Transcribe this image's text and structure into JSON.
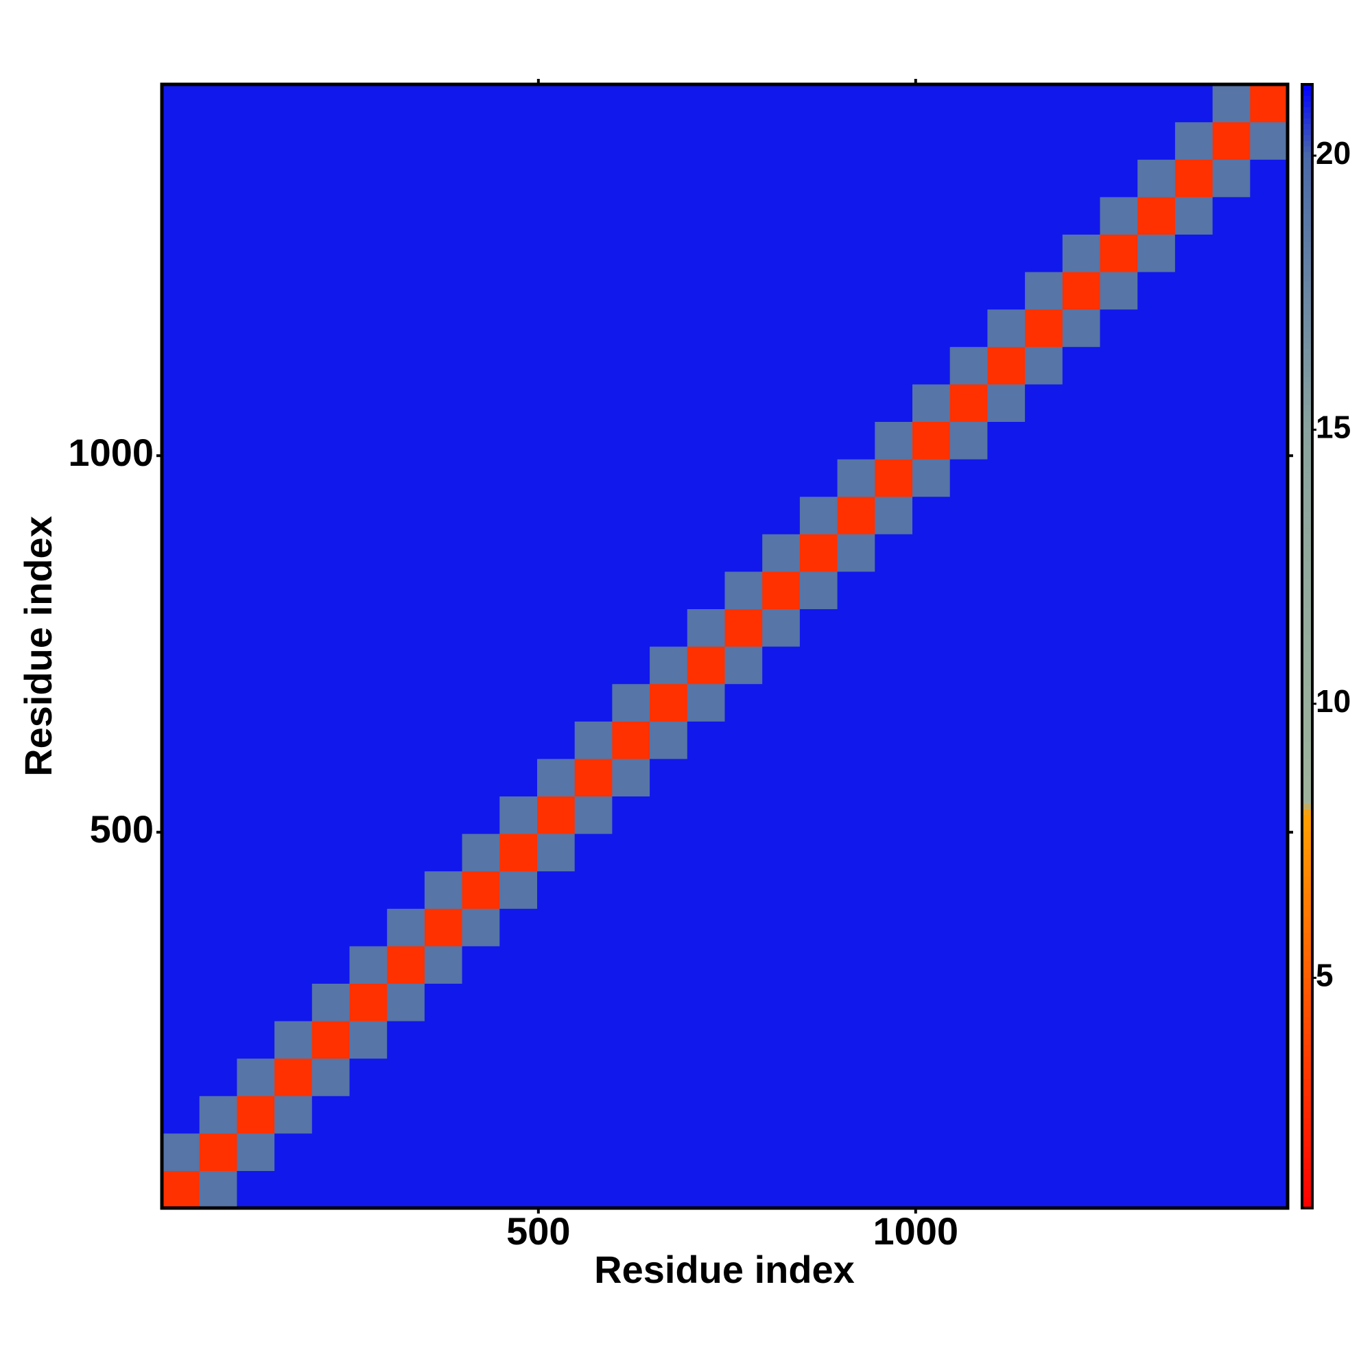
{
  "chart_data": {
    "type": "heatmap",
    "xlabel": "Residue index",
    "ylabel": "Residue index",
    "xlim": [
      1,
      1493
    ],
    "ylim": [
      1,
      1493
    ],
    "xticks": [
      500,
      1000
    ],
    "yticks": [
      500,
      1000
    ],
    "clim": [
      0.8,
      21.3
    ],
    "cticks": [
      5,
      10,
      15,
      20
    ],
    "colorscale": [
      [
        0.8,
        "#ff0000"
      ],
      [
        8,
        "#ffa000"
      ],
      [
        8.2,
        "#9fb39c"
      ],
      [
        15,
        "#8aa39e"
      ],
      [
        20,
        "#4a6aa8"
      ],
      [
        21.3,
        "#0000ff"
      ]
    ],
    "z": [
      [
        3,
        19,
        21,
        21,
        21,
        21,
        21,
        21,
        21,
        21,
        21,
        21,
        21,
        21,
        21,
        21,
        21,
        21,
        21,
        21,
        21,
        21,
        21,
        21,
        21,
        21,
        21,
        21,
        21,
        21
      ],
      [
        19,
        3,
        19,
        21,
        21,
        21,
        21,
        21,
        21,
        21,
        21,
        21,
        21,
        21,
        21,
        21,
        21,
        21,
        21,
        21,
        21,
        21,
        21,
        21,
        21,
        21,
        21,
        21,
        21,
        21
      ],
      [
        21,
        19,
        3,
        19,
        21,
        21,
        21,
        21,
        21,
        21,
        21,
        21,
        21,
        21,
        21,
        21,
        21,
        21,
        21,
        21,
        21,
        21,
        21,
        21,
        21,
        21,
        21,
        21,
        21,
        21
      ],
      [
        21,
        21,
        19,
        3,
        19,
        21,
        21,
        21,
        21,
        21,
        21,
        21,
        21,
        21,
        21,
        21,
        21,
        21,
        21,
        21,
        21,
        21,
        21,
        21,
        21,
        21,
        21,
        21,
        21,
        21
      ],
      [
        21,
        21,
        21,
        19,
        3,
        19,
        21,
        21,
        21,
        21,
        21,
        21,
        21,
        21,
        21,
        21,
        21,
        21,
        21,
        21,
        21,
        21,
        21,
        21,
        21,
        21,
        21,
        21,
        21,
        21
      ],
      [
        21,
        21,
        21,
        21,
        19,
        3,
        19,
        21,
        21,
        21,
        21,
        21,
        21,
        21,
        21,
        21,
        21,
        21,
        21,
        21,
        21,
        21,
        21,
        21,
        21,
        21,
        21,
        21,
        21,
        21
      ],
      [
        21,
        21,
        21,
        21,
        21,
        19,
        3,
        19,
        21,
        21,
        21,
        21,
        21,
        21,
        21,
        21,
        21,
        21,
        21,
        21,
        21,
        21,
        21,
        21,
        21,
        21,
        21,
        21,
        21,
        21
      ],
      [
        21,
        21,
        21,
        21,
        21,
        21,
        19,
        3,
        19,
        21,
        21,
        21,
        21,
        21,
        21,
        21,
        21,
        21,
        21,
        21,
        21,
        21,
        21,
        21,
        21,
        21,
        21,
        21,
        21,
        21
      ],
      [
        21,
        21,
        21,
        21,
        21,
        21,
        21,
        19,
        3,
        19,
        21,
        21,
        21,
        21,
        21,
        21,
        21,
        21,
        21,
        21,
        21,
        21,
        21,
        21,
        21,
        21,
        21,
        21,
        21,
        21
      ],
      [
        21,
        21,
        21,
        21,
        21,
        21,
        21,
        21,
        19,
        3,
        19,
        21,
        21,
        21,
        21,
        21,
        21,
        21,
        21,
        21,
        21,
        21,
        21,
        21,
        21,
        21,
        21,
        21,
        21,
        21
      ],
      [
        21,
        21,
        21,
        21,
        21,
        21,
        21,
        21,
        21,
        19,
        3,
        19,
        21,
        21,
        21,
        21,
        21,
        21,
        21,
        21,
        21,
        21,
        21,
        21,
        21,
        21,
        21,
        21,
        21,
        21
      ],
      [
        21,
        21,
        21,
        21,
        21,
        21,
        21,
        21,
        21,
        21,
        19,
        3,
        19,
        21,
        21,
        21,
        21,
        21,
        21,
        21,
        21,
        21,
        21,
        21,
        21,
        21,
        21,
        21,
        21,
        21
      ],
      [
        21,
        21,
        21,
        21,
        21,
        21,
        21,
        21,
        21,
        21,
        21,
        19,
        3,
        19,
        21,
        21,
        21,
        21,
        21,
        21,
        21,
        21,
        21,
        21,
        21,
        21,
        21,
        21,
        21,
        21
      ],
      [
        21,
        21,
        21,
        21,
        21,
        21,
        21,
        21,
        21,
        21,
        21,
        21,
        19,
        3,
        19,
        21,
        21,
        21,
        21,
        21,
        21,
        21,
        21,
        21,
        21,
        21,
        21,
        21,
        21,
        21
      ],
      [
        21,
        21,
        21,
        21,
        21,
        21,
        21,
        21,
        21,
        21,
        21,
        21,
        21,
        19,
        3,
        19,
        21,
        21,
        21,
        21,
        21,
        21,
        21,
        21,
        21,
        21,
        21,
        21,
        21,
        21
      ],
      [
        21,
        21,
        21,
        21,
        21,
        21,
        21,
        21,
        21,
        21,
        21,
        21,
        21,
        21,
        19,
        3,
        19,
        21,
        21,
        21,
        21,
        21,
        21,
        21,
        21,
        21,
        21,
        21,
        21,
        21
      ],
      [
        21,
        21,
        21,
        21,
        21,
        21,
        21,
        21,
        21,
        21,
        21,
        21,
        21,
        21,
        21,
        19,
        3,
        19,
        21,
        21,
        21,
        21,
        21,
        21,
        21,
        21,
        21,
        21,
        21,
        21
      ],
      [
        21,
        21,
        21,
        21,
        21,
        21,
        21,
        21,
        21,
        21,
        21,
        21,
        21,
        21,
        21,
        21,
        19,
        3,
        19,
        21,
        21,
        21,
        21,
        21,
        21,
        21,
        21,
        21,
        21,
        21
      ],
      [
        21,
        21,
        21,
        21,
        21,
        21,
        21,
        21,
        21,
        21,
        21,
        21,
        21,
        21,
        21,
        21,
        21,
        19,
        3,
        19,
        21,
        21,
        21,
        21,
        21,
        21,
        21,
        21,
        21,
        21
      ],
      [
        21,
        21,
        21,
        21,
        21,
        21,
        21,
        21,
        21,
        21,
        21,
        21,
        21,
        21,
        21,
        21,
        21,
        21,
        19,
        3,
        19,
        21,
        21,
        21,
        21,
        21,
        21,
        21,
        21,
        21
      ],
      [
        21,
        21,
        21,
        21,
        21,
        21,
        21,
        21,
        21,
        21,
        21,
        21,
        21,
        21,
        21,
        21,
        21,
        21,
        21,
        19,
        3,
        19,
        21,
        21,
        21,
        21,
        21,
        21,
        21,
        21
      ],
      [
        21,
        21,
        21,
        21,
        21,
        21,
        21,
        21,
        21,
        21,
        21,
        21,
        21,
        21,
        21,
        21,
        21,
        21,
        21,
        21,
        19,
        3,
        19,
        21,
        21,
        21,
        21,
        21,
        21,
        21
      ],
      [
        21,
        21,
        21,
        21,
        21,
        21,
        21,
        21,
        21,
        21,
        21,
        21,
        21,
        21,
        21,
        21,
        21,
        21,
        21,
        21,
        21,
        19,
        3,
        19,
        21,
        21,
        21,
        21,
        21,
        21
      ],
      [
        21,
        21,
        21,
        21,
        21,
        21,
        21,
        21,
        21,
        21,
        21,
        21,
        21,
        21,
        21,
        21,
        21,
        21,
        21,
        21,
        21,
        21,
        19,
        3,
        19,
        21,
        21,
        21,
        21,
        21
      ],
      [
        21,
        21,
        21,
        21,
        21,
        21,
        21,
        21,
        21,
        21,
        21,
        21,
        21,
        21,
        21,
        21,
        21,
        21,
        21,
        21,
        21,
        21,
        21,
        19,
        3,
        19,
        21,
        21,
        21,
        21
      ],
      [
        21,
        21,
        21,
        21,
        21,
        21,
        21,
        21,
        21,
        21,
        21,
        21,
        21,
        21,
        21,
        21,
        21,
        21,
        21,
        21,
        21,
        21,
        21,
        21,
        19,
        3,
        19,
        21,
        21,
        21
      ],
      [
        21,
        21,
        21,
        21,
        21,
        21,
        21,
        21,
        21,
        21,
        21,
        21,
        21,
        21,
        21,
        21,
        21,
        21,
        21,
        21,
        21,
        21,
        21,
        21,
        21,
        19,
        3,
        19,
        21,
        21
      ],
      [
        21,
        21,
        21,
        21,
        21,
        21,
        21,
        21,
        21,
        21,
        21,
        21,
        21,
        21,
        21,
        21,
        21,
        21,
        21,
        21,
        21,
        21,
        21,
        21,
        21,
        21,
        19,
        3,
        19,
        21
      ],
      [
        21,
        21,
        21,
        21,
        21,
        21,
        21,
        21,
        21,
        21,
        21,
        21,
        21,
        21,
        21,
        21,
        21,
        21,
        21,
        21,
        21,
        21,
        21,
        21,
        21,
        21,
        21,
        19,
        3,
        19
      ],
      [
        21,
        21,
        21,
        21,
        21,
        21,
        21,
        21,
        21,
        21,
        21,
        21,
        21,
        21,
        21,
        21,
        21,
        21,
        21,
        21,
        21,
        21,
        21,
        21,
        21,
        21,
        21,
        21,
        19,
        3
      ]
    ]
  }
}
